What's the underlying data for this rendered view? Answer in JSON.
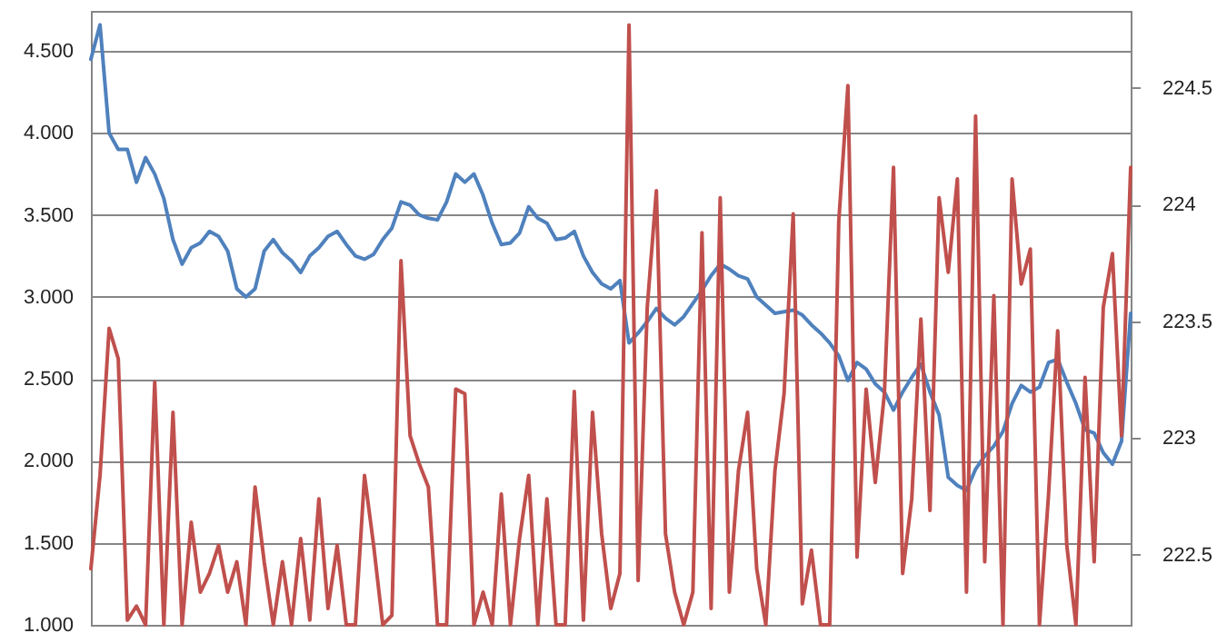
{
  "chart_data": {
    "type": "line",
    "categories": [
      null,
      null,
      null,
      null,
      null,
      null,
      null,
      null,
      null,
      null,
      null,
      null,
      null,
      null,
      null,
      null,
      null,
      null,
      null,
      null,
      null,
      null,
      null,
      null,
      null,
      null,
      null,
      null,
      null,
      null,
      null,
      null,
      null,
      null,
      null,
      null,
      null,
      null,
      null,
      null,
      null,
      null,
      null,
      null,
      null,
      null,
      null,
      null,
      null,
      null,
      null,
      null,
      null,
      null,
      null,
      null,
      null,
      null,
      null,
      null,
      null,
      null,
      null,
      null,
      null,
      null,
      null,
      null,
      null,
      null,
      null,
      null,
      null,
      null,
      null,
      null,
      null,
      null,
      null,
      null,
      null,
      null,
      null,
      null,
      null,
      null,
      null,
      null,
      null,
      null,
      null,
      null,
      null,
      null,
      null,
      null,
      null,
      null,
      null,
      null,
      null,
      null,
      null,
      null,
      null,
      null,
      null,
      null,
      null,
      null,
      null,
      null,
      null,
      null,
      null
    ],
    "series": [
      {
        "color": "#4f81bd",
        "values": [
          4.45,
          4.66,
          4.0,
          3.9,
          3.9,
          3.7,
          3.85,
          3.75,
          3.6,
          3.35,
          3.2,
          3.3,
          3.33,
          3.4,
          3.37,
          3.28,
          3.05,
          3.0,
          3.05,
          3.28,
          3.35,
          3.27,
          3.22,
          3.15,
          3.25,
          3.3,
          3.37,
          3.4,
          3.32,
          3.25,
          3.23,
          3.26,
          3.35,
          3.42,
          3.58,
          3.56,
          3.5,
          3.48,
          3.47,
          3.58,
          3.75,
          3.7,
          3.75,
          3.62,
          3.45,
          3.32,
          3.33,
          3.39,
          3.55,
          3.48,
          3.45,
          3.35,
          3.36,
          3.4,
          3.25,
          3.15,
          3.08,
          3.05,
          3.1,
          2.72,
          2.78,
          2.85,
          2.93,
          2.87,
          2.83,
          2.88,
          2.96,
          3.04,
          3.13,
          3.2,
          3.17,
          3.13,
          3.11,
          3.0,
          2.95,
          2.9,
          2.91,
          2.92,
          2.89,
          2.83,
          2.78,
          2.72,
          2.64,
          2.49,
          2.6,
          2.56,
          2.47,
          2.42,
          2.31,
          2.42,
          2.51,
          2.59,
          2.42,
          2.28,
          1.9,
          1.85,
          1.82,
          1.95,
          2.03,
          2.09,
          2.18,
          2.35,
          2.46,
          2.42,
          2.45,
          2.6,
          2.62,
          2.48,
          2.35,
          2.19,
          2.17,
          2.05,
          1.98,
          2.12,
          2.9
        ]
      },
      {
        "color": "#c0504d",
        "axis": "y2",
        "values": [
          222.44,
          222.84,
          223.47,
          223.34,
          222.22,
          222.28,
          222.2,
          223.24,
          222.2,
          223.11,
          222.2,
          222.64,
          222.34,
          222.42,
          222.54,
          222.34,
          222.47,
          222.2,
          222.79,
          222.47,
          222.2,
          222.47,
          222.2,
          222.57,
          222.22,
          222.74,
          222.27,
          222.54,
          222.2,
          222.2,
          222.84,
          222.54,
          222.2,
          222.24,
          223.76,
          223.01,
          222.89,
          222.79,
          222.2,
          222.2,
          223.21,
          223.19,
          222.2,
          222.34,
          222.2,
          222.76,
          222.2,
          222.57,
          222.84,
          222.2,
          222.74,
          222.2,
          222.2,
          223.2,
          222.22,
          223.11,
          222.59,
          222.27,
          222.42,
          224.77,
          222.39,
          223.56,
          224.06,
          222.59,
          222.34,
          222.2,
          222.34,
          223.88,
          222.27,
          224.03,
          222.34,
          222.86,
          223.11,
          222.44,
          222.2,
          222.86,
          223.19,
          223.96,
          222.29,
          222.52,
          222.2,
          222.2,
          223.93,
          224.51,
          222.49,
          223.21,
          222.81,
          223.19,
          224.16,
          222.42,
          222.74,
          223.51,
          222.69,
          224.03,
          223.71,
          224.11,
          222.34,
          224.38,
          222.47,
          223.61,
          222.2,
          224.11,
          223.66,
          223.81,
          222.2,
          222.76,
          223.46,
          222.54,
          222.2,
          223.26,
          222.47,
          223.56,
          223.79,
          223.01,
          224.16
        ]
      }
    ],
    "ylim": [
      1,
      4.745
    ],
    "yticks": [
      {
        "value": 1,
        "label": "1.000"
      },
      {
        "value": 1.5,
        "label": "1.500"
      },
      {
        "value": 2,
        "label": "2.000"
      },
      {
        "value": 2.5,
        "label": "2.500"
      },
      {
        "value": 3,
        "label": "3.000"
      },
      {
        "value": 3.5,
        "label": "3.500"
      },
      {
        "value": 4,
        "label": "4.000"
      },
      {
        "value": 4.5,
        "label": "4.500"
      }
    ],
    "y2lim": [
      222.2,
      224.83
    ],
    "y2ticks": [
      222.5,
      223,
      223.5,
      224,
      224.5
    ],
    "grid": "y"
  }
}
